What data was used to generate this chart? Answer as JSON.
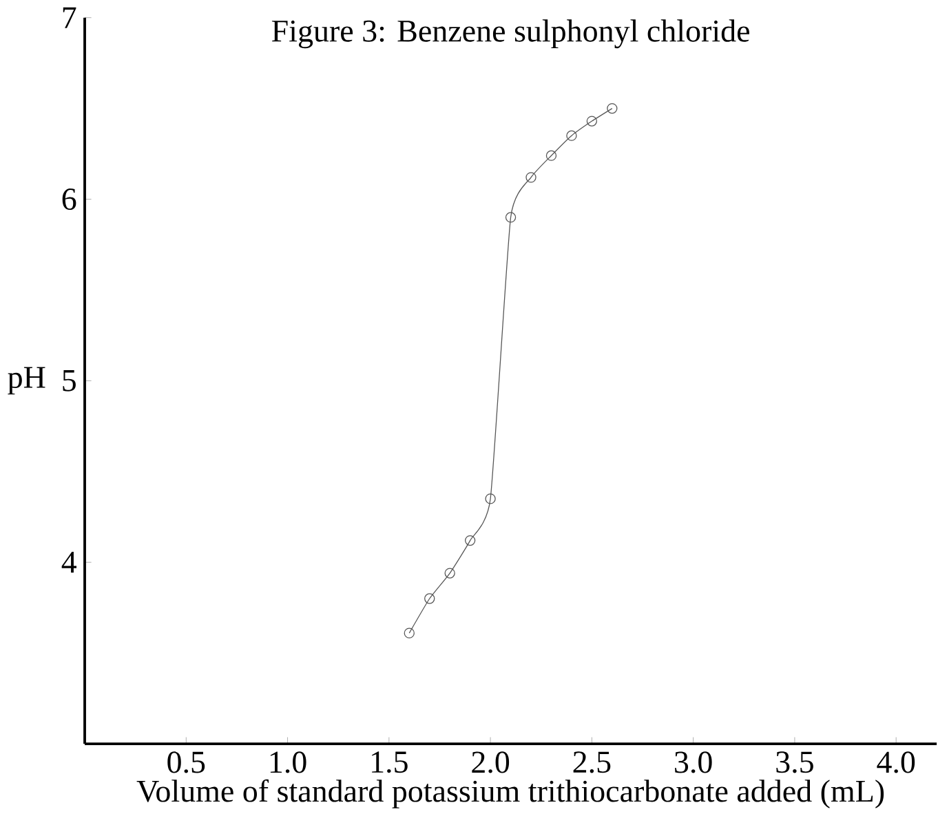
{
  "chart_data": {
    "type": "line",
    "title": "Figure 3:      Benzene sulphonyl chloride",
    "xlabel": "Volume of standard potassium trithiocarbonate added (mL)",
    "ylabel": "pH",
    "x": [
      1.6,
      1.7,
      1.8,
      1.9,
      2.0,
      2.1,
      2.2,
      2.3,
      2.4,
      2.5,
      2.6
    ],
    "series": [
      {
        "color": "#555555",
        "values": [
          3.61,
          3.8,
          3.94,
          4.12,
          4.35,
          5.9,
          6.12,
          6.24,
          6.35,
          6.43,
          6.5
        ]
      }
    ],
    "xlim": [
      0,
      4.2
    ],
    "ylim": [
      3,
      7
    ],
    "xticks": [
      0.5,
      {
        "value": 1,
        "label": "1.0"
      },
      1.5,
      {
        "value": 2,
        "label": "2.0"
      },
      2.5,
      {
        "value": 3,
        "label": "3.0"
      },
      3.5,
      {
        "value": 4,
        "label": "4.0"
      }
    ],
    "yticks": [
      4,
      5,
      6,
      7
    ],
    "marker": "circle",
    "line_style": "solid"
  }
}
